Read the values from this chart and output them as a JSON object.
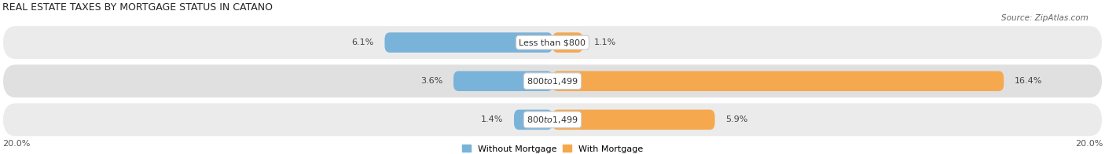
{
  "title": "Real Estate Taxes by Mortgage Status in Catano",
  "source": "Source: ZipAtlas.com",
  "rows": [
    {
      "label": "Less than $800",
      "without_mortgage": 6.1,
      "with_mortgage": 1.1
    },
    {
      "label": "$800 to $1,499",
      "without_mortgage": 3.6,
      "with_mortgage": 16.4
    },
    {
      "label": "$800 to $1,499",
      "without_mortgage": 1.4,
      "with_mortgage": 5.9
    }
  ],
  "x_range": 20.0,
  "x_left_label": "20.0%",
  "x_right_label": "20.0%",
  "color_without": "#7ab3d9",
  "color_with": "#f5a84e",
  "color_with_light": "#f5c99a",
  "row_bg_light": "#ebebeb",
  "row_bg_dark": "#e0e0e0",
  "legend_without": "Without Mortgage",
  "legend_with": "With Mortgage",
  "title_fontsize": 9,
  "source_fontsize": 7.5,
  "label_fontsize": 8,
  "tick_fontsize": 8
}
